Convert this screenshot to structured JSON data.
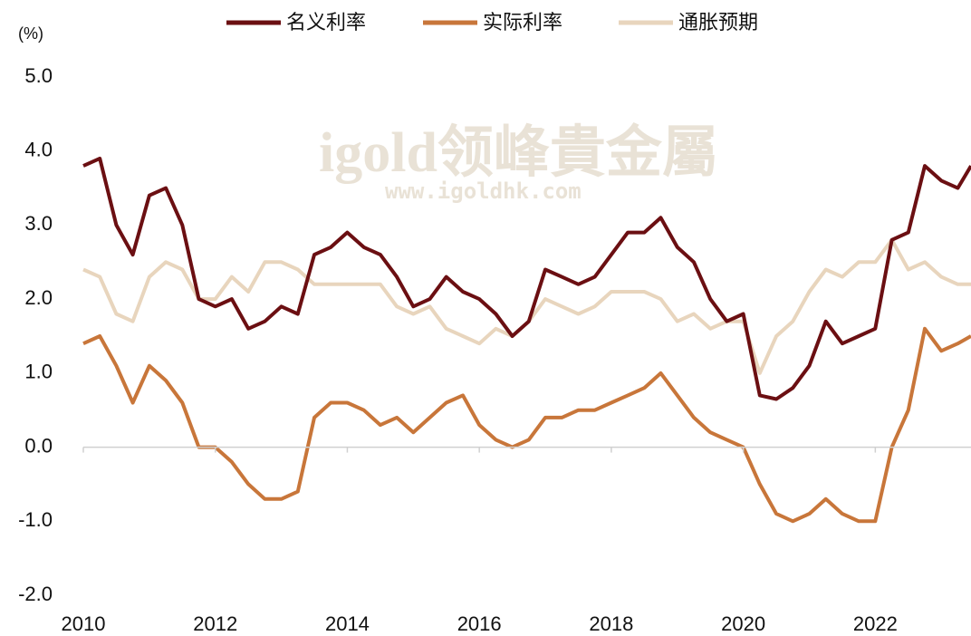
{
  "chart_data": {
    "type": "line",
    "y_unit": "(%)",
    "watermark": "igold领峰貴金屬",
    "watermark_url": "www.igoldhk.com",
    "x": [
      2010,
      2010.25,
      2010.5,
      2010.75,
      2011,
      2011.25,
      2011.5,
      2011.75,
      2012,
      2012.25,
      2012.5,
      2012.75,
      2013,
      2013.25,
      2013.5,
      2013.75,
      2014,
      2014.25,
      2014.5,
      2014.75,
      2015,
      2015.25,
      2015.5,
      2015.75,
      2016,
      2016.25,
      2016.5,
      2016.75,
      2017,
      2017.25,
      2017.5,
      2017.75,
      2018,
      2018.25,
      2018.5,
      2018.75,
      2019,
      2019.25,
      2019.5,
      2019.75,
      2020,
      2020.25,
      2020.5,
      2020.75,
      2021,
      2021.25,
      2021.5,
      2021.75,
      2022,
      2022.25,
      2022.5,
      2022.75,
      2023,
      2023.25,
      2023.45
    ],
    "series": [
      {
        "name": "名义利率",
        "color": "#6b0f12",
        "values": [
          3.8,
          3.9,
          3.0,
          2.6,
          3.4,
          3.5,
          3.0,
          2.0,
          1.9,
          2.0,
          1.6,
          1.7,
          1.9,
          1.8,
          2.6,
          2.7,
          2.9,
          2.7,
          2.6,
          2.3,
          1.9,
          2.0,
          2.3,
          2.1,
          2.0,
          1.8,
          1.5,
          1.7,
          2.4,
          2.3,
          2.2,
          2.3,
          2.6,
          2.9,
          2.9,
          3.1,
          2.7,
          2.5,
          2.0,
          1.7,
          1.8,
          0.7,
          0.65,
          0.8,
          1.1,
          1.7,
          1.4,
          1.5,
          1.6,
          2.8,
          2.9,
          3.8,
          3.6,
          3.5,
          3.8
        ]
      },
      {
        "name": "实际利率",
        "color": "#c8763a",
        "values": [
          1.4,
          1.5,
          1.1,
          0.6,
          1.1,
          0.9,
          0.6,
          0.0,
          0.0,
          -0.2,
          -0.5,
          -0.7,
          -0.7,
          -0.6,
          0.4,
          0.6,
          0.6,
          0.5,
          0.3,
          0.4,
          0.2,
          0.4,
          0.6,
          0.7,
          0.3,
          0.1,
          0.0,
          0.1,
          0.4,
          0.4,
          0.5,
          0.5,
          0.6,
          0.7,
          0.8,
          1.0,
          0.7,
          0.4,
          0.2,
          0.1,
          0.0,
          -0.5,
          -0.9,
          -1.0,
          -0.9,
          -0.7,
          -0.9,
          -1.0,
          -1.0,
          0.0,
          0.5,
          1.6,
          1.3,
          1.4,
          1.5
        ]
      },
      {
        "name": "通胀预期",
        "color": "#e8d5bd",
        "values": [
          2.4,
          2.3,
          1.8,
          1.7,
          2.3,
          2.5,
          2.4,
          2.0,
          2.0,
          2.3,
          2.1,
          2.5,
          2.5,
          2.4,
          2.2,
          2.2,
          2.2,
          2.2,
          2.2,
          1.9,
          1.8,
          1.9,
          1.6,
          1.5,
          1.4,
          1.6,
          1.5,
          1.7,
          2.0,
          1.9,
          1.8,
          1.9,
          2.1,
          2.1,
          2.1,
          2.0,
          1.7,
          1.8,
          1.6,
          1.7,
          1.7,
          1.0,
          1.5,
          1.7,
          2.1,
          2.4,
          2.3,
          2.5,
          2.5,
          2.8,
          2.4,
          2.5,
          2.3,
          2.2,
          2.2
        ]
      }
    ],
    "xlim": [
      2010,
      2023.45
    ],
    "xticks": [
      2010,
      2012,
      2014,
      2016,
      2018,
      2020,
      2022
    ],
    "ylim": [
      -2,
      5
    ],
    "yticks": [
      {
        "value": -2,
        "label": "-2.0"
      },
      {
        "value": -1,
        "label": "-1.0"
      },
      {
        "value": 0,
        "label": "0.0"
      },
      {
        "value": 1,
        "label": "1.0"
      },
      {
        "value": 2,
        "label": "2.0"
      },
      {
        "value": 3,
        "label": "3.0"
      },
      {
        "value": 4,
        "label": "4.0"
      },
      {
        "value": 5,
        "label": "5.0"
      }
    ],
    "grid": false,
    "legend": "top"
  }
}
